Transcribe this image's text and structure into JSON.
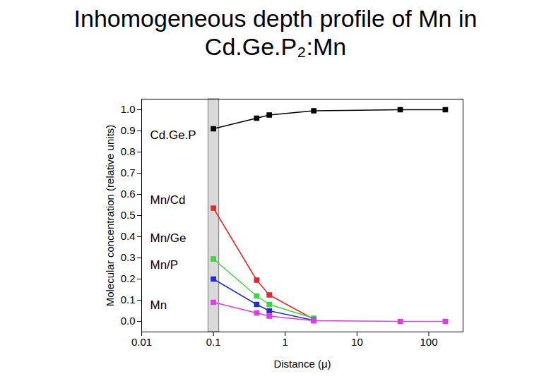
{
  "chart_data": {
    "type": "line",
    "title": "Inhomogeneous depth profile of Mn in Cd.Ge.P₂:Mn",
    "x_label": "Distance (μ)",
    "y_label": "Molecular concentration (relative units)",
    "log": "x",
    "marker": "square",
    "line_style": "solid",
    "xlim": [
      0.01,
      300
    ],
    "xticks": [
      0.01,
      0.1,
      1,
      10,
      100
    ],
    "ylim": [
      -0.05,
      1.05
    ],
    "yticks": [
      {
        "value": 0,
        "label": "0.0"
      },
      {
        "value": 0.1,
        "label": "0.1"
      },
      {
        "value": 0.2,
        "label": "0.2"
      },
      {
        "value": 0.3,
        "label": "0.3"
      },
      {
        "value": 0.4,
        "label": "0.4"
      },
      {
        "value": 0.5,
        "label": "0.5"
      },
      {
        "value": 0.6,
        "label": "0.6"
      },
      {
        "value": 0.7,
        "label": "0.7"
      },
      {
        "value": 0.8,
        "label": "0.8"
      },
      {
        "value": 0.9,
        "label": "0.9"
      },
      {
        "value": 1.0,
        "label": "1.0"
      }
    ],
    "shaded_region": [
      0.085,
      0.12
    ],
    "series": [
      {
        "name": "Cd.Ge.P",
        "color": "#000000",
        "x": [
          0.1,
          0.4,
          0.6,
          2.5,
          40,
          170
        ],
        "values": [
          0.91,
          0.96,
          0.975,
          0.995,
          1.0,
          1.0
        ]
      },
      {
        "name": "Mn/Cd",
        "color": "#e8262a",
        "x": [
          0.1,
          0.4,
          0.6,
          2.5
        ],
        "values": [
          0.535,
          0.195,
          0.125,
          0.01
        ]
      },
      {
        "name": "Mn/Ge",
        "color": "#3fd43f",
        "x": [
          0.1,
          0.4,
          0.6,
          2.5
        ],
        "values": [
          0.295,
          0.12,
          0.08,
          0.015
        ]
      },
      {
        "name": "Mn/P",
        "color": "#1f2fd6",
        "x": [
          0.1,
          0.4,
          0.6,
          2.5
        ],
        "values": [
          0.2,
          0.08,
          0.05,
          0.005
        ]
      },
      {
        "name": "Mn",
        "color": "#e33be3",
        "x": [
          0.1,
          0.4,
          0.6,
          2.5,
          40,
          170
        ],
        "values": [
          0.09,
          0.04,
          0.025,
          0.003,
          0.0,
          0.0
        ]
      }
    ]
  }
}
